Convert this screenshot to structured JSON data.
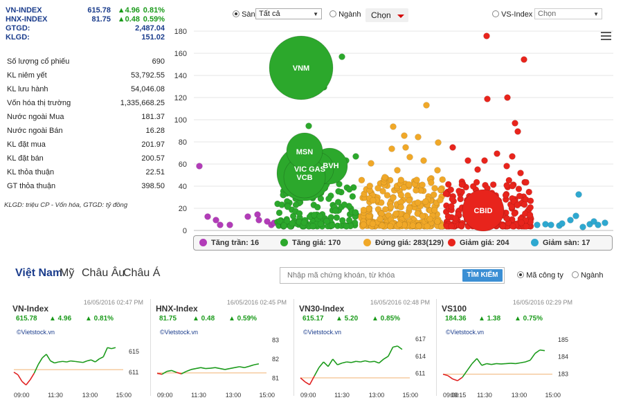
{
  "indices": [
    {
      "name": "VN-INDEX",
      "value": "615.78",
      "change": "▲4.96",
      "percent": "0.81%"
    },
    {
      "name": "HNX-INDEX",
      "value": "81.75",
      "change": "▲0.48",
      "percent": "0.59%"
    }
  ],
  "totals": [
    {
      "label": "GTGD:",
      "value": "2,487.04"
    },
    {
      "label": "KLGD:",
      "value": "151.02"
    }
  ],
  "stats": [
    {
      "label": "Số lượng cổ phiếu",
      "value": "690"
    },
    {
      "label": "KL niêm yết",
      "value": "53,792.55"
    },
    {
      "label": "KL lưu hành",
      "value": "54,046.08"
    },
    {
      "label": "Vốn hóa thị trường",
      "value": "1,335,668.25"
    },
    {
      "label": "Nước ngoài Mua",
      "value": "181.37"
    },
    {
      "label": "Nước ngoài Bán",
      "value": "16.28"
    },
    {
      "label": "KL đặt mua",
      "value": "201.97"
    },
    {
      "label": "KL đặt bán",
      "value": "200.57"
    },
    {
      "label": "KL thỏa thuận",
      "value": "22.51"
    },
    {
      "label": "GT thỏa thuận",
      "value": "398.50"
    }
  ],
  "note": "KLGD: triệu CP - Vốn hóa, GTGD: tỷ đồng",
  "controls": {
    "san_label": "Sàn",
    "san_select": "Tất cả",
    "nganh_label": "Ngành",
    "chon_button": "Chọn",
    "vs_label": "VS-Index",
    "vs_select": "Chọn"
  },
  "colors": {
    "tran": "#b23cb8",
    "tang": "#2ca82c",
    "dung": "#f0a828",
    "giam": "#e8241c",
    "san": "#2ea8d0"
  },
  "chart_data": {
    "type": "scatter",
    "y_ticks": [
      "0",
      "20",
      "40",
      "60",
      "80",
      "100",
      "120",
      "140",
      "160",
      "180"
    ],
    "ylim": [
      0,
      180
    ],
    "bubbles": [
      {
        "label": "VNM",
        "y": 147
      },
      {
        "label": "MSN",
        "y": 71
      },
      {
        "label": "VIC",
        "y": 56
      },
      {
        "label": "GAS",
        "y": 56
      },
      {
        "label": "BVH",
        "y": 58
      },
      {
        "label": "VCB",
        "y": 48
      },
      {
        "label": "CBID",
        "y": 18
      }
    ],
    "legend": [
      {
        "key": "tran",
        "label": "Tăng trần: 16"
      },
      {
        "key": "tang",
        "label": "Tăng giá: 170"
      },
      {
        "key": "dung",
        "label": "Đứng giá: 283(129)"
      },
      {
        "key": "giam",
        "label": "Giảm giá: 204"
      },
      {
        "key": "san",
        "label": "Giảm sàn: 17"
      }
    ]
  },
  "tabs": [
    "Việt Nam",
    "Mỹ",
    "Châu Âu",
    "Châu Á"
  ],
  "search": {
    "placeholder": "Nhập mã chứng khoán, từ khóa",
    "button": "TÌM KIẾM",
    "opt_company": "Mã công ty",
    "opt_industry": "Ngành"
  },
  "mini_charts": [
    {
      "title": "VN-Index",
      "time": "16/05/2016 02:47 PM",
      "value": "615.78",
      "change": "▲ 4.96",
      "percent": "▲ 0.81%",
      "brand": "©Vietstock.vn",
      "y_labels": [
        "615",
        "611"
      ],
      "x_labels": [
        "09:00",
        "11:30",
        "13:00",
        "15:00"
      ],
      "ref": 611.5,
      "ylim": [
        608,
        618
      ],
      "series": [
        611,
        610.5,
        609.2,
        608.5,
        609.5,
        610.8,
        612.5,
        613.8,
        614.5,
        613.2,
        612.8,
        613.0,
        613.1,
        613.0,
        613.2,
        613.1,
        613.0,
        612.9,
        613.2,
        613.4,
        613.0,
        613.6,
        614.0,
        615.8,
        615.6,
        615.8
      ]
    },
    {
      "title": "HNX-Index",
      "time": "16/05/2016 02:45 PM",
      "value": "81.75",
      "change": "▲ 0.48",
      "percent": "▲ 0.59%",
      "brand": "©Vietstock.vn",
      "y_labels": [
        "83",
        "82",
        "81"
      ],
      "x_labels": [
        "09:00",
        "11:30",
        "13:00",
        "15:00"
      ],
      "ref": 81.27,
      "ylim": [
        80.5,
        83.2
      ],
      "series": [
        81.25,
        81.2,
        81.35,
        81.4,
        81.3,
        81.22,
        81.35,
        81.45,
        81.5,
        81.55,
        81.5,
        81.52,
        81.55,
        81.5,
        81.45,
        81.5,
        81.55,
        81.6,
        81.55,
        81.62,
        81.7,
        81.75
      ]
    },
    {
      "title": "VN30-Index",
      "time": "16/05/2016 02:48 PM",
      "value": "615.17",
      "change": "▲ 5.20",
      "percent": "▲ 0.85%",
      "brand": "©Vietstock.vn",
      "y_labels": [
        "617",
        "614",
        "611"
      ],
      "x_labels": [
        "09:00",
        "11:30",
        "13:00",
        "15:00"
      ],
      "ref": 610.2,
      "ylim": [
        608.5,
        617.5
      ],
      "series": [
        610.2,
        609.5,
        609.0,
        610.5,
        612.0,
        613.0,
        612.2,
        613.5,
        612.5,
        612.8,
        613.0,
        612.9,
        613.1,
        613.0,
        613.2,
        613.0,
        613.1,
        612.8,
        613.5,
        614.0,
        615.6,
        615.8,
        615.2
      ]
    },
    {
      "title": "VS100",
      "time": "16/05/2016 02:29 PM",
      "value": "184.36",
      "change": "▲ 1.38",
      "percent": "▲ 0.75%",
      "brand": "©Vietstock.vn",
      "y_labels": [
        "185",
        "184",
        "183"
      ],
      "x_labels": [
        "09:00",
        "09:15",
        "11:30",
        "13:00",
        "15:00"
      ],
      "ref": 182.98,
      "ylim": [
        182.2,
        185.2
      ],
      "series": [
        182.98,
        182.9,
        182.7,
        182.6,
        182.8,
        183.2,
        183.6,
        183.9,
        183.5,
        183.6,
        183.55,
        183.6,
        183.58,
        183.6,
        183.62,
        183.6,
        183.65,
        183.7,
        183.8,
        184.2,
        184.4,
        184.36
      ]
    }
  ]
}
